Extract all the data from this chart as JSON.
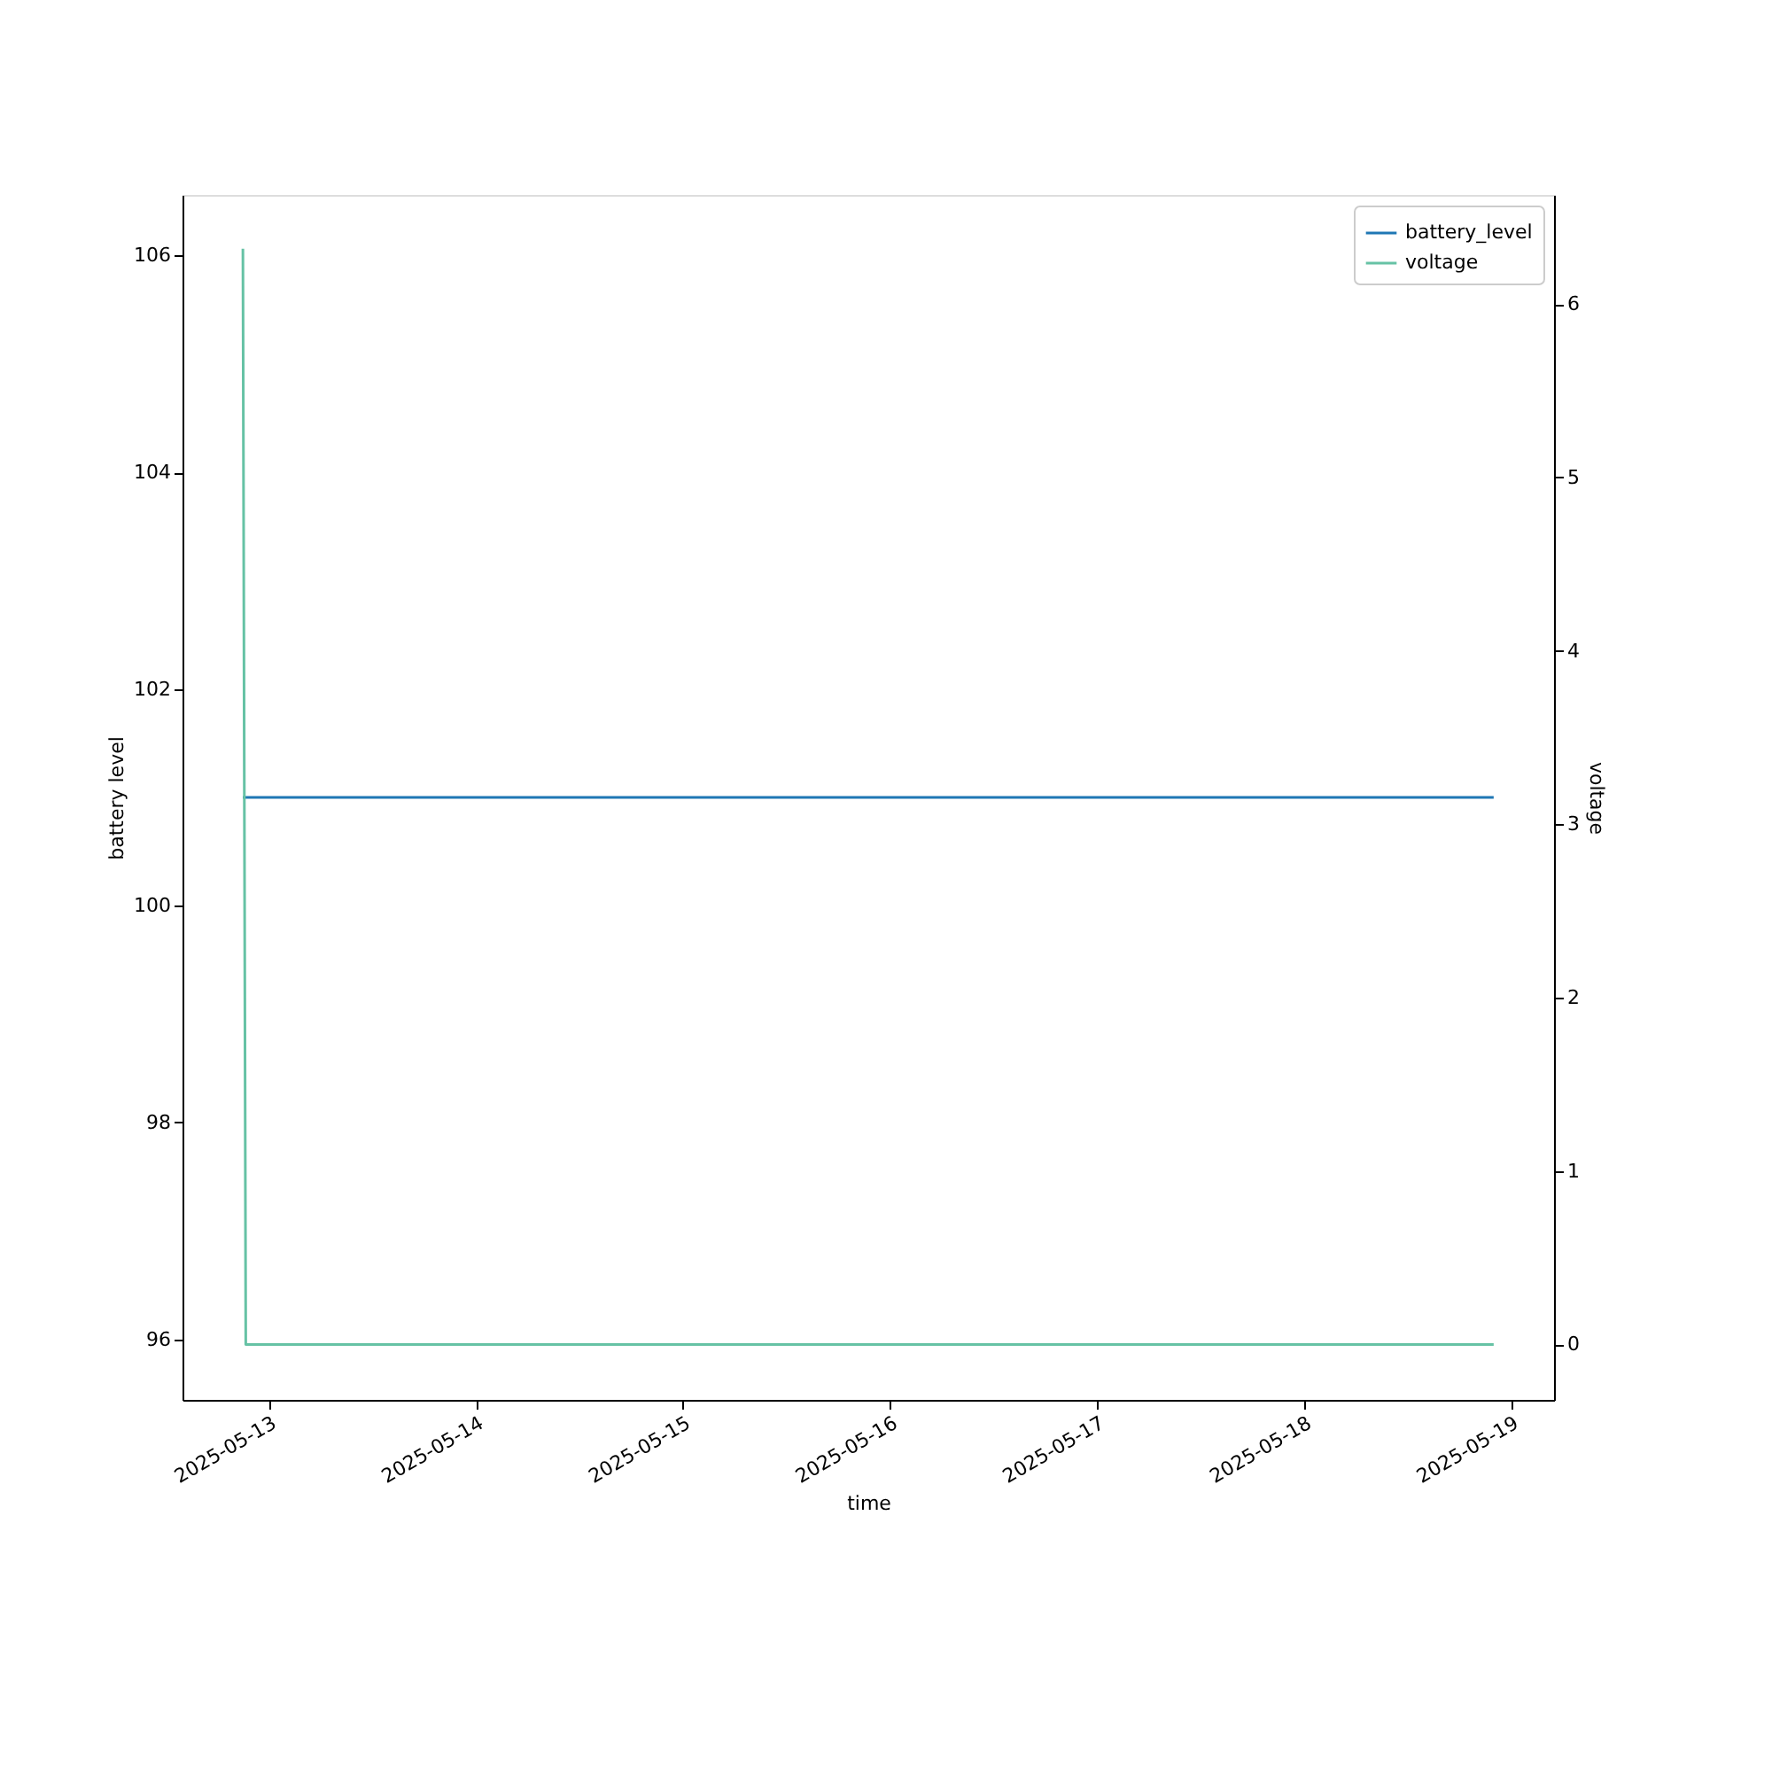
{
  "chart_data": {
    "type": "line",
    "xlabel": "time",
    "ylabel": "battery level",
    "y2label": "voltage",
    "xlim": [
      "2025-05-12T14:00",
      "2025-05-19T05:00"
    ],
    "xticks": [
      {
        "value": "2025-05-13",
        "label": "2025-05-13"
      },
      {
        "value": "2025-05-14",
        "label": "2025-05-14"
      },
      {
        "value": "2025-05-15",
        "label": "2025-05-15"
      },
      {
        "value": "2025-05-16",
        "label": "2025-05-16"
      },
      {
        "value": "2025-05-17",
        "label": "2025-05-17"
      },
      {
        "value": "2025-05-18",
        "label": "2025-05-18"
      },
      {
        "value": "2025-05-19",
        "label": "2025-05-19"
      }
    ],
    "ylim": [
      95.44,
      106.56
    ],
    "yticks": [
      96,
      98,
      100,
      102,
      104,
      106
    ],
    "y2lim": [
      -0.32,
      6.63
    ],
    "y2ticks": [
      0,
      1,
      2,
      3,
      4,
      5,
      6
    ],
    "series": [
      {
        "name": "battery_level",
        "color": "#1f77b4",
        "x": [
          "2025-05-12T21:00",
          "2025-05-18T22:00"
        ],
        "values": [
          101,
          101
        ]
      },
      {
        "name": "voltage",
        "color": "#66c2a5",
        "axis": "y2",
        "x": [
          "2025-05-12T21:00",
          "2025-05-12T21:20",
          "2025-05-18T22:00"
        ],
        "values": [
          6.32,
          0,
          0
        ]
      }
    ],
    "legend": "top right",
    "grid": false,
    "marker": "none",
    "line_style": "solid"
  }
}
